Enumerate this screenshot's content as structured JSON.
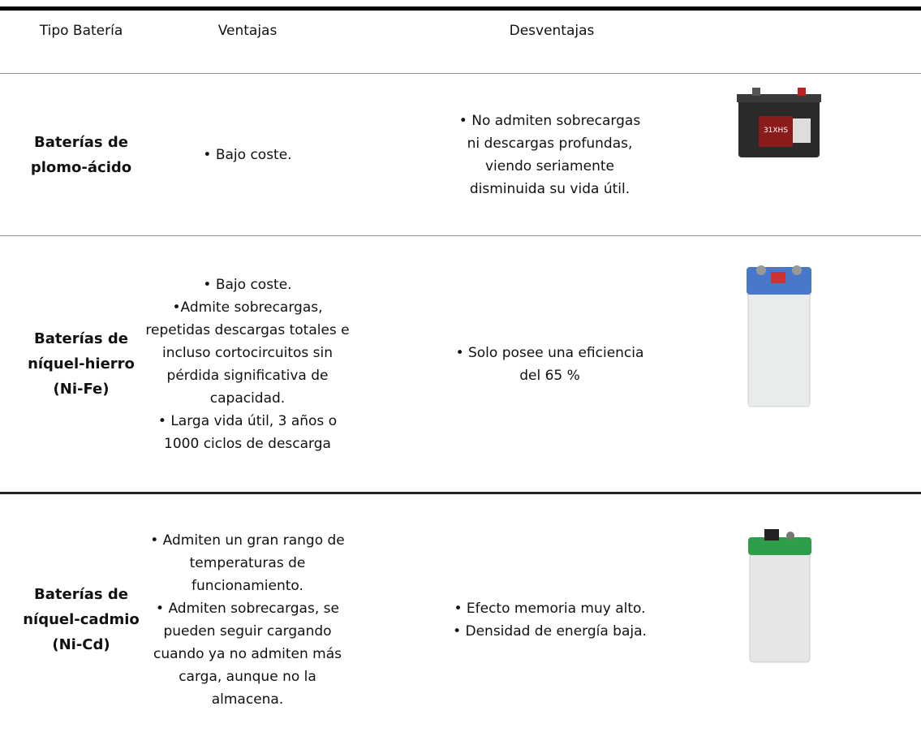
{
  "header": {
    "columns": [
      "Tipo Batería",
      "Ventajas",
      "Desventajas"
    ]
  },
  "rows": [
    {
      "type": [
        "Baterías de",
        "plomo-ácido"
      ],
      "ventajas": [
        "• Bajo coste."
      ],
      "desventajas": [
        "• No admiten sobrecargas",
        "ni descargas profundas,",
        "viendo seriamente",
        "disminuida su vida útil."
      ]
    },
    {
      "type": [
        "Baterías de",
        "níquel-hierro",
        "(Ni-Fe)"
      ],
      "ventajas": [
        "• Bajo coste.",
        "•Admite sobrecargas,",
        "repetidas descargas totales e",
        "incluso cortocircuitos sin",
        "pérdida significativa de",
        "capacidad.",
        "• Larga vida útil, 3 años o",
        "1000 ciclos de descarga"
      ],
      "desventajas": [
        "• Solo posee una eficiencia",
        "del 65 %"
      ]
    },
    {
      "type": [
        "Baterías de",
        "níquel-cadmio",
        "(Ni-Cd)"
      ],
      "ventajas": [
        "• Admiten un gran rango de",
        "temperaturas de",
        "funcionamiento.",
        "• Admiten sobrecargas, se",
        "pueden seguir cargando",
        "cuando ya no admiten más",
        "carga, aunque no la",
        "almacena."
      ],
      "desventajas": [
        "• Efecto memoria muy alto.",
        "• Densidad de energía baja."
      ]
    }
  ]
}
